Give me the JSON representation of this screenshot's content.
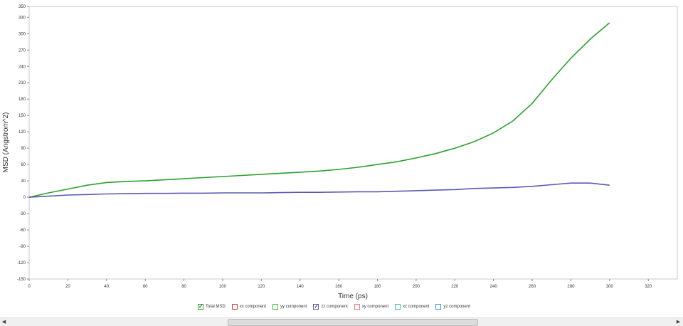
{
  "chart_data": {
    "type": "line",
    "title": "",
    "xlabel": "Time (ps)",
    "ylabel": "MSD (Angstrom^2)",
    "xlim": [
      0,
      335
    ],
    "ylim": [
      -150,
      350
    ],
    "xticks": [
      0,
      20,
      40,
      60,
      80,
      100,
      120,
      140,
      160,
      180,
      200,
      220,
      240,
      260,
      280,
      300,
      320
    ],
    "yticks": [
      -150,
      -120,
      -90,
      -60,
      -30,
      0,
      30,
      60,
      90,
      120,
      150,
      180,
      210,
      240,
      270,
      300,
      330,
      350
    ],
    "grid": true,
    "legend_position": "bottom",
    "series": [
      {
        "name": "Total MSD",
        "color": "#2ca02c",
        "x": [
          0,
          10,
          20,
          30,
          40,
          50,
          60,
          70,
          80,
          90,
          100,
          110,
          120,
          130,
          140,
          150,
          160,
          170,
          180,
          190,
          200,
          210,
          220,
          230,
          240,
          250,
          260,
          270,
          280,
          290,
          300
        ],
        "y": [
          0,
          8,
          15,
          22,
          27,
          29,
          30,
          32,
          34,
          36,
          38,
          40,
          42,
          44,
          46,
          48,
          51,
          55,
          60,
          65,
          72,
          80,
          90,
          102,
          118,
          140,
          172,
          215,
          255,
          290,
          320
        ]
      },
      {
        "name": "zz component",
        "color": "#5a5ab4",
        "x": [
          0,
          10,
          20,
          30,
          40,
          50,
          60,
          70,
          80,
          90,
          100,
          110,
          120,
          130,
          140,
          150,
          160,
          170,
          180,
          190,
          200,
          210,
          220,
          230,
          240,
          250,
          260,
          270,
          280,
          290,
          300
        ],
        "y": [
          0,
          2,
          4,
          5,
          6,
          6.5,
          7,
          7,
          7.5,
          7.5,
          8,
          8,
          8,
          8.5,
          9,
          9,
          9.5,
          10,
          10,
          11,
          12,
          13,
          14,
          16,
          17,
          18,
          20,
          23,
          26,
          26,
          22
        ]
      }
    ]
  },
  "legend": [
    {
      "label": "Total MSD",
      "checked": true,
      "color": "#2ca02c"
    },
    {
      "label": "xx component",
      "checked": false,
      "color": "#d04040"
    },
    {
      "label": "yy component",
      "checked": false,
      "color": "#40c040"
    },
    {
      "label": "zz component",
      "checked": true,
      "color": "#5a5ab4"
    },
    {
      "label": "xy component",
      "checked": false,
      "color": "#e08080"
    },
    {
      "label": "xz component",
      "checked": false,
      "color": "#40c0a0"
    },
    {
      "label": "yz component",
      "checked": false,
      "color": "#40a0d0"
    }
  ],
  "scrollbar": {
    "left_icon": "◀",
    "right_icon": "▶"
  }
}
